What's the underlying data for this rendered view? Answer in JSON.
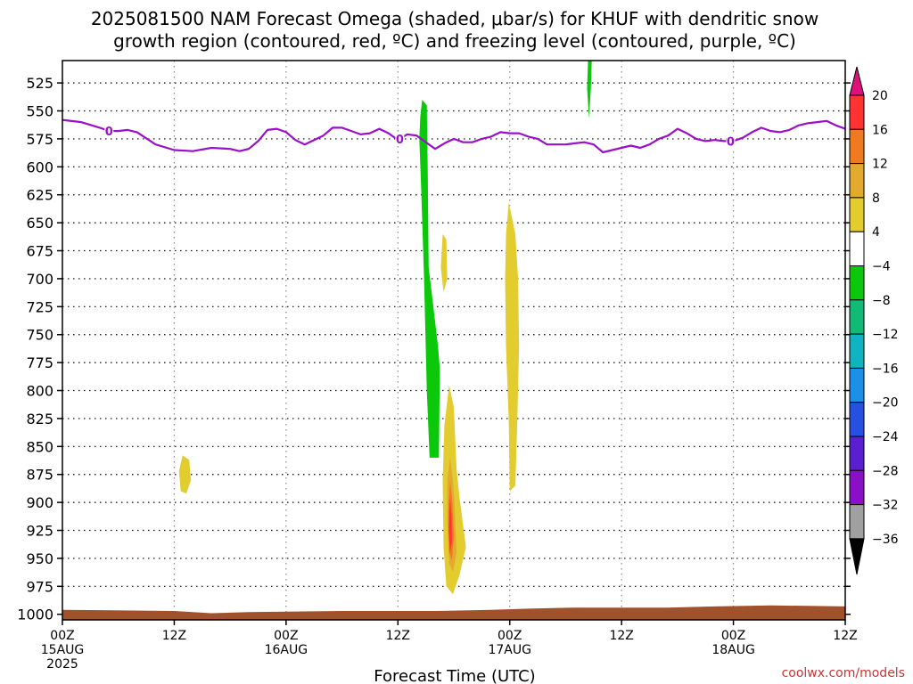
{
  "chart_data": {
    "type": "heatmap",
    "title_lines": [
      "2025081500 NAM Forecast Omega (shaded, μbar/s) for KHUF with dendritic snow",
      "growth region (contoured, red, ºC) and freezing level (contoured, purple, ºC)"
    ],
    "xlabel": "Forecast Time (UTC)",
    "credit": "coolwx.com/models",
    "y_axis": {
      "ticks": [
        525,
        550,
        575,
        600,
        625,
        650,
        675,
        700,
        725,
        750,
        775,
        800,
        825,
        850,
        875,
        900,
        925,
        950,
        975,
        1000
      ],
      "range": [
        505,
        1005
      ]
    },
    "x_axis": {
      "range_hours": [
        0,
        84
      ],
      "ticks": [
        {
          "hour": 0,
          "lines": [
            "00Z",
            "15AUG",
            "2025"
          ]
        },
        {
          "hour": 12,
          "lines": [
            "12Z"
          ]
        },
        {
          "hour": 24,
          "lines": [
            "00Z",
            "16AUG"
          ]
        },
        {
          "hour": 36,
          "lines": [
            "12Z"
          ]
        },
        {
          "hour": 48,
          "lines": [
            "00Z",
            "17AUG"
          ]
        },
        {
          "hour": 60,
          "lines": [
            "12Z"
          ]
        },
        {
          "hour": 72,
          "lines": [
            "00Z",
            "18AUG"
          ]
        },
        {
          "hour": 84,
          "lines": [
            "12Z"
          ]
        }
      ]
    },
    "grid": true,
    "colorbar": {
      "labels": [
        "20",
        "16",
        "12",
        "8",
        "4",
        "−4",
        "−8",
        "−12",
        "−16",
        "−20",
        "−24",
        "−28",
        "−32",
        "−36"
      ],
      "colors": [
        "#ff3333",
        "#f07a20",
        "#e3aa30",
        "#e3cc30",
        "#ffffff",
        "#0bc80b",
        "#11bb77",
        "#10b3c0",
        "#1a90e8",
        "#2850e0",
        "#5a20d0",
        "#8a10c8",
        "#a0a0a0"
      ],
      "top_color": "#e0107a",
      "bottom_color": "#000000"
    },
    "freezing_level": {
      "color": "#9a10c8",
      "label": "0",
      "label_hours": [
        5,
        36.2,
        71.7
      ],
      "points": [
        [
          0,
          558
        ],
        [
          2,
          560
        ],
        [
          4,
          565
        ],
        [
          5,
          568
        ],
        [
          6,
          568
        ],
        [
          7,
          567
        ],
        [
          8,
          569
        ],
        [
          10,
          580
        ],
        [
          12,
          585
        ],
        [
          14,
          586
        ],
        [
          16,
          583
        ],
        [
          18,
          584
        ],
        [
          19,
          586
        ],
        [
          20,
          584
        ],
        [
          21,
          577
        ],
        [
          22,
          567
        ],
        [
          23,
          566
        ],
        [
          24,
          569
        ],
        [
          25,
          576
        ],
        [
          26,
          580
        ],
        [
          27,
          576
        ],
        [
          28,
          572
        ],
        [
          29,
          565
        ],
        [
          30,
          565
        ],
        [
          31,
          568
        ],
        [
          32,
          571
        ],
        [
          33,
          570
        ],
        [
          34,
          566
        ],
        [
          35,
          570
        ],
        [
          36,
          576
        ],
        [
          37,
          571
        ],
        [
          38,
          572
        ],
        [
          39,
          578
        ],
        [
          40,
          584
        ],
        [
          41,
          579
        ],
        [
          42,
          575
        ],
        [
          43,
          578
        ],
        [
          44,
          578
        ],
        [
          45,
          575
        ],
        [
          46,
          573
        ],
        [
          47,
          569
        ],
        [
          48,
          570
        ],
        [
          49,
          570
        ],
        [
          50,
          573
        ],
        [
          51,
          575
        ],
        [
          52,
          580
        ],
        [
          53,
          580
        ],
        [
          54,
          580
        ],
        [
          55,
          579
        ],
        [
          56,
          578
        ],
        [
          57,
          580
        ],
        [
          58,
          587
        ],
        [
          59,
          585
        ],
        [
          60,
          583
        ],
        [
          61,
          581
        ],
        [
          62,
          583
        ],
        [
          63,
          580
        ],
        [
          64,
          575
        ],
        [
          65,
          572
        ],
        [
          66,
          566
        ],
        [
          67,
          570
        ],
        [
          68,
          575
        ],
        [
          69,
          577
        ],
        [
          70,
          576
        ],
        [
          71,
          577
        ],
        [
          72,
          577
        ],
        [
          73,
          574
        ],
        [
          74,
          569
        ],
        [
          75,
          565
        ],
        [
          76,
          568
        ],
        [
          77,
          569
        ],
        [
          78,
          567
        ],
        [
          79,
          563
        ],
        [
          80,
          561
        ],
        [
          81,
          560
        ],
        [
          82,
          559
        ],
        [
          83,
          563
        ],
        [
          84,
          566
        ]
      ]
    },
    "shaded_regions": [
      {
        "color": "#0bc80b",
        "points": [
          [
            56.4,
            505
          ],
          [
            56.8,
            505
          ],
          [
            56.7,
            530
          ],
          [
            56.5,
            557
          ],
          [
            56.3,
            530
          ]
        ]
      },
      {
        "color": "#0bc80b",
        "points": [
          [
            38.6,
            540
          ],
          [
            39.1,
            545
          ],
          [
            39.2,
            600
          ],
          [
            39.3,
            690
          ],
          [
            39.7,
            718
          ],
          [
            40.3,
            760
          ],
          [
            40.5,
            780
          ],
          [
            40.4,
            860
          ],
          [
            39.4,
            860
          ],
          [
            39.1,
            800
          ],
          [
            38.8,
            700
          ],
          [
            38.5,
            620
          ],
          [
            38.3,
            575
          ],
          [
            38.4,
            555
          ]
        ]
      },
      {
        "color": "#e3cc30",
        "points": [
          [
            12.9,
            858
          ],
          [
            13.6,
            862
          ],
          [
            13.8,
            880
          ],
          [
            13.3,
            892
          ],
          [
            12.7,
            890
          ],
          [
            12.5,
            872
          ]
        ]
      },
      {
        "color": "#e3cc30",
        "points": [
          [
            40.8,
            660
          ],
          [
            41.2,
            665
          ],
          [
            41.3,
            700
          ],
          [
            40.9,
            712
          ],
          [
            40.6,
            690
          ]
        ]
      },
      {
        "color": "#e3cc30",
        "points": [
          [
            47.9,
            632
          ],
          [
            48.6,
            660
          ],
          [
            48.9,
            700
          ],
          [
            49.0,
            760
          ],
          [
            48.8,
            830
          ],
          [
            48.6,
            885
          ],
          [
            48.0,
            890
          ],
          [
            47.9,
            830
          ],
          [
            47.6,
            760
          ],
          [
            47.5,
            700
          ],
          [
            47.6,
            660
          ]
        ]
      },
      {
        "color": "#e3cc30",
        "points": [
          [
            41.5,
            795
          ],
          [
            42.0,
            815
          ],
          [
            42.3,
            870
          ],
          [
            42.6,
            895
          ],
          [
            43.3,
            940
          ],
          [
            42.6,
            965
          ],
          [
            41.9,
            982
          ],
          [
            41.2,
            975
          ],
          [
            40.9,
            940
          ],
          [
            40.8,
            880
          ],
          [
            41.0,
            830
          ]
        ]
      },
      {
        "color": "#e3aa30",
        "points": [
          [
            41.6,
            860
          ],
          [
            41.9,
            880
          ],
          [
            42.1,
            905
          ],
          [
            42.3,
            945
          ],
          [
            41.9,
            962
          ],
          [
            41.5,
            955
          ],
          [
            41.3,
            920
          ],
          [
            41.3,
            880
          ]
        ]
      },
      {
        "color": "#f07a20",
        "points": [
          [
            41.6,
            880
          ],
          [
            41.85,
            900
          ],
          [
            42.0,
            930
          ],
          [
            41.8,
            952
          ],
          [
            41.5,
            945
          ],
          [
            41.4,
            910
          ]
        ]
      },
      {
        "color": "#ff3333",
        "points": [
          [
            41.6,
            895
          ],
          [
            41.75,
            912
          ],
          [
            41.8,
            935
          ],
          [
            41.6,
            945
          ],
          [
            41.45,
            925
          ]
        ]
      }
    ],
    "ground": {
      "color": "#a0522d",
      "points": [
        [
          0,
          996
        ],
        [
          12,
          997
        ],
        [
          16,
          999
        ],
        [
          20,
          998
        ],
        [
          30,
          997
        ],
        [
          40,
          997
        ],
        [
          46,
          996
        ],
        [
          50,
          995
        ],
        [
          55,
          994
        ],
        [
          65,
          994
        ],
        [
          70,
          993
        ],
        [
          76,
          992
        ],
        [
          84,
          993
        ]
      ]
    }
  }
}
